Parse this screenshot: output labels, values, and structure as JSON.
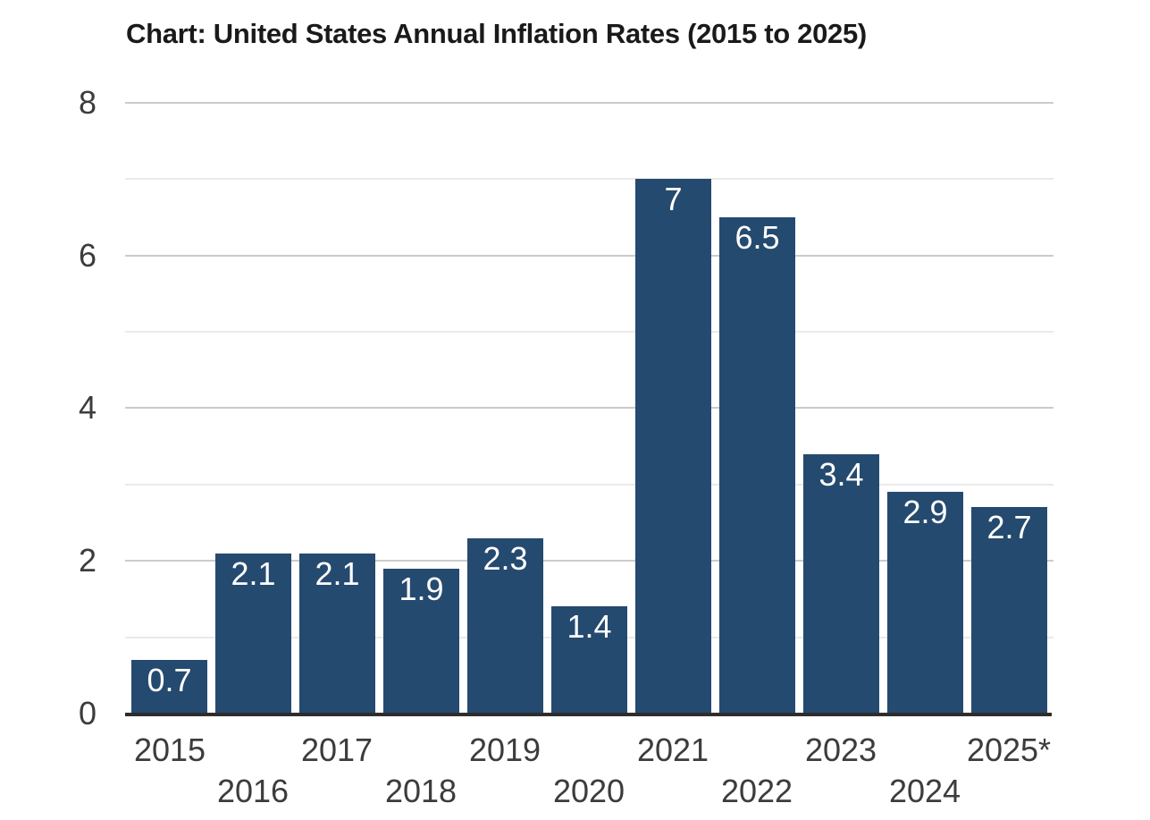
{
  "chart_data": {
    "type": "bar",
    "title": "Chart: United States Annual Inflation Rates (2015 to 2025)",
    "categories": [
      "2015",
      "2016",
      "2017",
      "2018",
      "2019",
      "2020",
      "2021",
      "2022",
      "2023",
      "2024",
      "2025*"
    ],
    "values": [
      0.7,
      2.1,
      2.1,
      1.9,
      2.3,
      1.4,
      7,
      6.5,
      3.4,
      2.9,
      2.7
    ],
    "bar_labels": [
      "0.7",
      "2.1",
      "2.1",
      "1.9",
      "2.3",
      "1.4",
      "7",
      "6.5",
      "3.4",
      "2.9",
      "2.7"
    ],
    "xlabel": "",
    "ylabel": "",
    "ylim": [
      0,
      8
    ],
    "y_tick_labels": [
      "0",
      "2",
      "4",
      "6",
      "8"
    ],
    "y_ticks": [
      0,
      2,
      4,
      6,
      8
    ],
    "y_minor_gridlines": [
      1,
      3,
      5,
      7
    ],
    "grid": "horizontal",
    "legend": "none",
    "x_label_layout": "staggered-two-rows",
    "colors": {
      "bar": "#254a6f",
      "bar_value_label": "#ffffff",
      "title": "#1a1a1a",
      "axis_label": "#3c3c3c",
      "major_gridline": "#cbcbcb",
      "minor_gridline": "#eaeaea",
      "axis_line": "#2d2d2d",
      "background": "#ffffff"
    }
  }
}
